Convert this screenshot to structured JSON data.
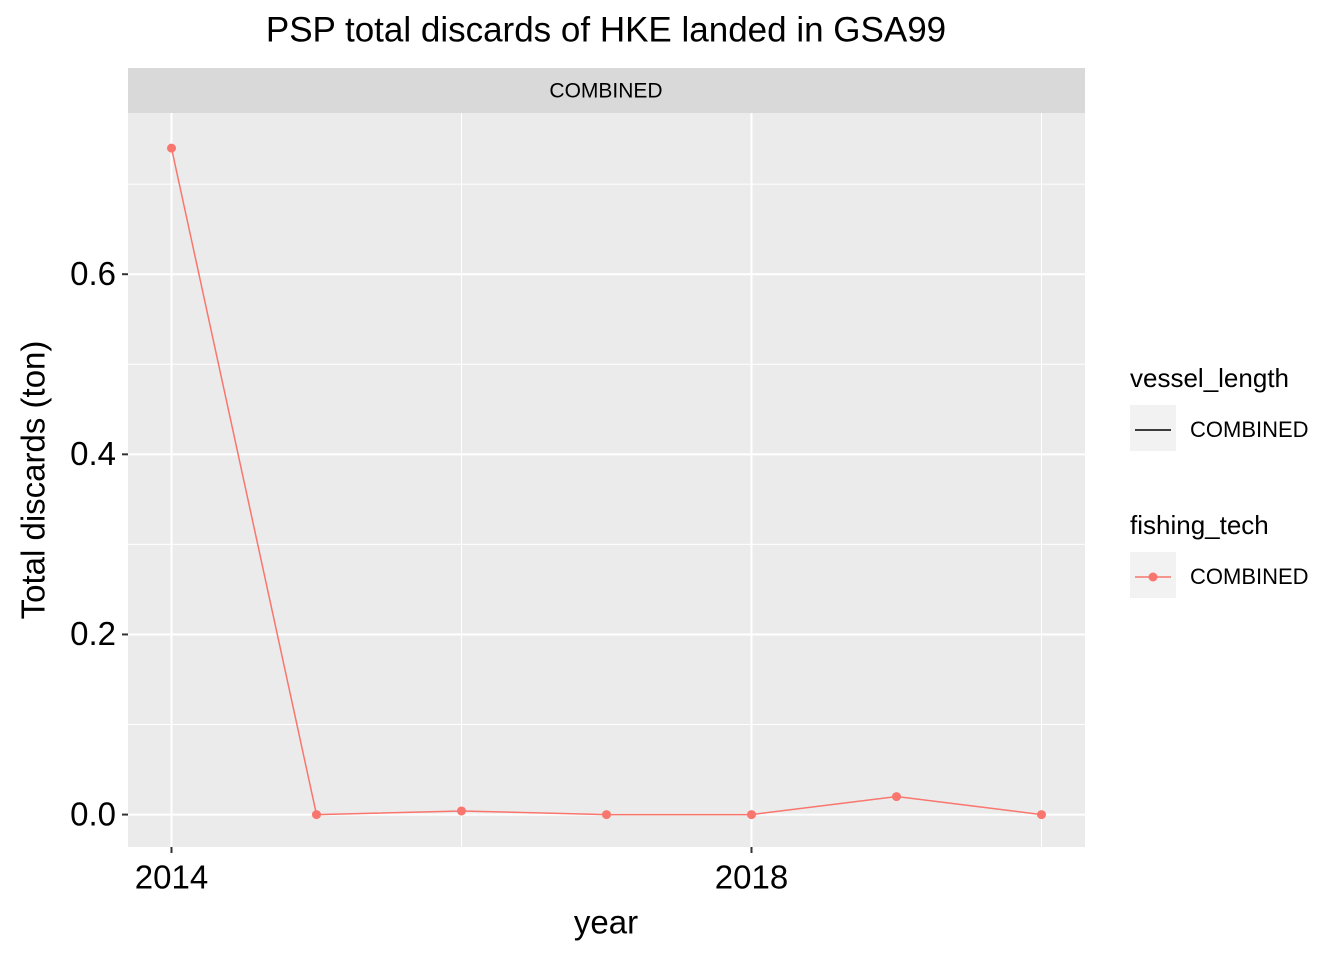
{
  "chart_data": {
    "type": "line",
    "title": "PSP total discards of HKE landed in GSA99",
    "facet_label": "COMBINED",
    "x_label": "year",
    "y_label": "Total discards (ton)",
    "x": [
      2014,
      2015,
      2016,
      2017,
      2018,
      2019,
      2020
    ],
    "series": [
      {
        "color": "#F8766D",
        "values": [
          0.74,
          0,
          0.004,
          0,
          0,
          0.02,
          0
        ]
      }
    ],
    "xlim": [
      2013.7,
      2020.3
    ],
    "xticks": [
      2014,
      2018
    ],
    "x_minor_grid": [
      2016,
      2020
    ],
    "ylim": [
      -0.036,
      0.779
    ],
    "yticks": [
      {
        "value": 0,
        "label": "0.0"
      },
      0.2,
      0.4,
      0.6
    ],
    "y_minor_grid": [
      0.1,
      0.3,
      0.5,
      0.7
    ],
    "grid": true,
    "legend_position": "right",
    "legends": [
      {
        "title": "vessel_length",
        "labels": [
          "COMBINED"
        ],
        "color": "#000000",
        "points": false
      },
      {
        "title": "fishing_tech",
        "labels": [
          "COMBINED"
        ],
        "color": "#F8766D",
        "points": true
      }
    ]
  }
}
